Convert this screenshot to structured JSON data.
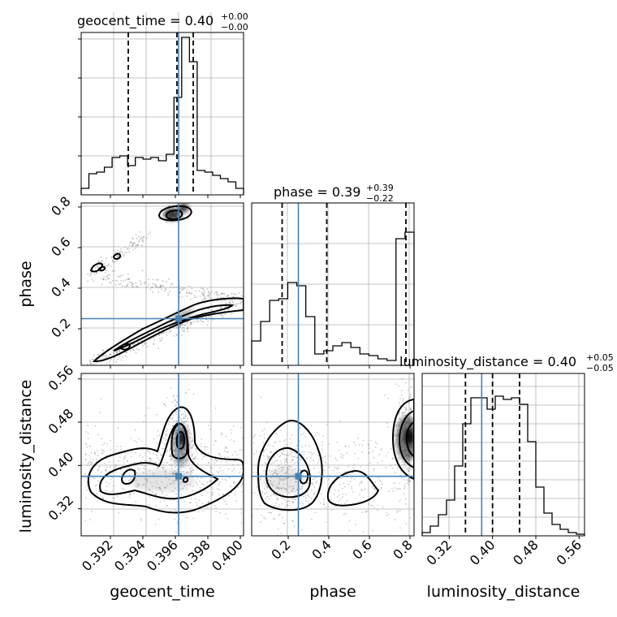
{
  "colors": {
    "truth": "#4682b4",
    "grid": "#b0b0b0",
    "ink": "#000000"
  },
  "chart_data": {
    "type": "corner",
    "parameters": [
      {
        "name": "geocent_time",
        "title_main": "geocent_time = 0.40",
        "title_sup": "+0.00",
        "title_sub": "−0.00",
        "range": [
          0.3902,
          0.4002
        ],
        "ticks": [
          0.392,
          0.394,
          0.396,
          0.398,
          0.4
        ],
        "tick_labels": [
          "0.392",
          "0.394",
          "0.396",
          "0.398",
          "0.400"
        ],
        "truth": 0.3962,
        "quantiles": [
          0.3931,
          0.3961,
          0.3971
        ],
        "histogram": [
          0.04,
          0.13,
          0.14,
          0.17,
          0.23,
          0.24,
          0.18,
          0.23,
          0.22,
          0.23,
          0.21,
          0.25,
          0.6,
          0.97,
          0.82,
          0.15,
          0.14,
          0.12,
          0.1,
          0.08,
          0.04
        ]
      },
      {
        "name": "phase",
        "title_main": "phase = 0.39",
        "title_sup": "+0.39",
        "title_sub": "−0.22",
        "range": [
          0.02,
          0.82
        ],
        "ticks": [
          0.2,
          0.4,
          0.6,
          0.8
        ],
        "tick_labels": [
          "0.2",
          "0.4",
          "0.6",
          "0.8"
        ],
        "truth": 0.25,
        "quantiles": [
          0.17,
          0.39,
          0.78
        ],
        "histogram": [
          0.15,
          0.27,
          0.4,
          0.41,
          0.51,
          0.49,
          0.3,
          0.07,
          0.09,
          0.12,
          0.14,
          0.11,
          0.07,
          0.06,
          0.04,
          0.03,
          0.78,
          0.82
        ]
      },
      {
        "name": "luminosity_distance",
        "title_main": "luminosity_distance = 0.40",
        "title_sup": "+0.05",
        "title_sub": "−0.05",
        "range": [
          0.27,
          0.57
        ],
        "ticks": [
          0.32,
          0.4,
          0.48,
          0.56
        ],
        "tick_labels": [
          "0.32",
          "0.40",
          "0.48",
          "0.56"
        ],
        "truth": 0.38,
        "quantiles": [
          0.35,
          0.4,
          0.45
        ],
        "histogram": [
          0.02,
          0.06,
          0.13,
          0.22,
          0.43,
          0.69,
          0.85,
          0.85,
          0.78,
          0.86,
          0.84,
          0.85,
          0.81,
          0.58,
          0.3,
          0.14,
          0.07,
          0.04,
          0.02,
          0.01
        ]
      }
    ],
    "y_tick_sets": {
      "phase": {
        "ticks": [
          0.2,
          0.4,
          0.6,
          0.8
        ],
        "labels": [
          "0.2",
          "0.4",
          "0.6",
          "0.8"
        ]
      },
      "luminosity_distance": {
        "ticks": [
          0.32,
          0.4,
          0.48,
          0.56
        ],
        "labels": [
          "0.32",
          "0.40",
          "0.48",
          "0.56"
        ]
      }
    },
    "grid": true
  }
}
